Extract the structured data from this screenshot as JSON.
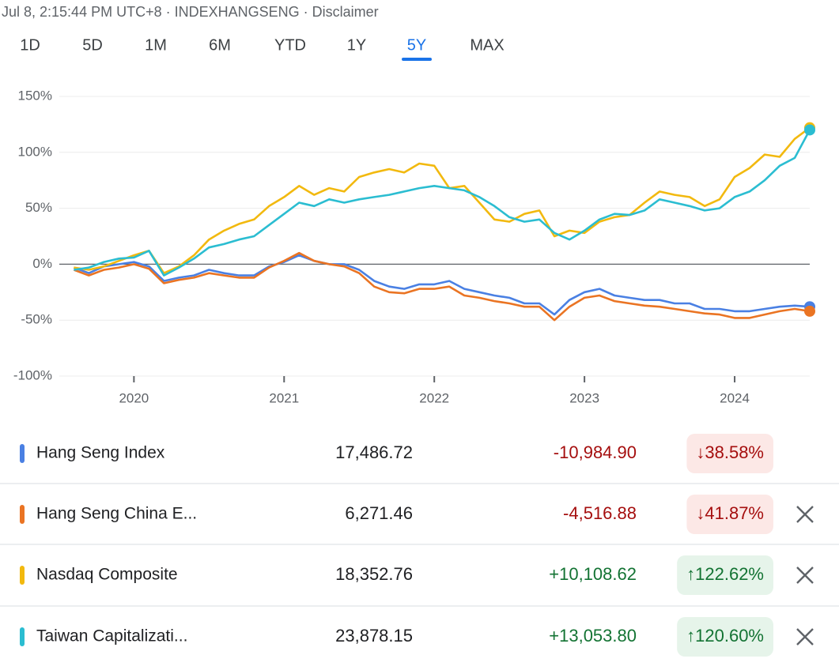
{
  "header": {
    "text": "Jul 8, 2:15:44 PM UTC+8 · INDEXHANGSENG · Disclaimer"
  },
  "tabs": {
    "items": [
      "1D",
      "5D",
      "1M",
      "6M",
      "YTD",
      "1Y",
      "5Y",
      "MAX"
    ],
    "selected": "5Y"
  },
  "chart_data": {
    "type": "line",
    "x": [
      2019.6,
      2019.7,
      2019.8,
      2019.9,
      2020.0,
      2020.1,
      2020.2,
      2020.3,
      2020.4,
      2020.5,
      2020.6,
      2020.7,
      2020.8,
      2020.9,
      2021.0,
      2021.1,
      2021.2,
      2021.3,
      2021.4,
      2021.5,
      2021.6,
      2021.7,
      2021.8,
      2021.9,
      2022.0,
      2022.1,
      2022.2,
      2022.3,
      2022.4,
      2022.5,
      2022.6,
      2022.7,
      2022.8,
      2022.9,
      2023.0,
      2023.1,
      2023.2,
      2023.3,
      2023.4,
      2023.5,
      2023.6,
      2023.7,
      2023.8,
      2023.9,
      2024.0,
      2024.1,
      2024.2,
      2024.3,
      2024.4,
      2024.5
    ],
    "series": [
      {
        "name": "Hang Seng Index",
        "color": "#4a80e3",
        "values": [
          -3,
          -8,
          -2,
          0,
          2,
          -2,
          -15,
          -12,
          -10,
          -5,
          -8,
          -10,
          -10,
          -2,
          2,
          8,
          3,
          0,
          0,
          -5,
          -15,
          -20,
          -22,
          -18,
          -18,
          -15,
          -22,
          -25,
          -28,
          -30,
          -35,
          -35,
          -45,
          -32,
          -25,
          -22,
          -28,
          -30,
          -32,
          -32,
          -35,
          -35,
          -40,
          -40,
          -42,
          -42,
          -40,
          -38,
          -37,
          -38
        ]
      },
      {
        "name": "Hang Seng China E...",
        "color": "#ea7423",
        "values": [
          -5,
          -10,
          -5,
          -3,
          0,
          -4,
          -17,
          -14,
          -12,
          -8,
          -10,
          -12,
          -12,
          -3,
          3,
          10,
          3,
          0,
          -2,
          -8,
          -20,
          -25,
          -26,
          -22,
          -22,
          -20,
          -28,
          -30,
          -33,
          -35,
          -38,
          -38,
          -50,
          -38,
          -30,
          -28,
          -33,
          -35,
          -37,
          -38,
          -40,
          -42,
          -44,
          -45,
          -48,
          -48,
          -45,
          -42,
          -40,
          -42
        ]
      },
      {
        "name": "Nasdaq Composite",
        "color": "#f2b90f",
        "values": [
          -3,
          -5,
          -2,
          3,
          8,
          12,
          -8,
          -2,
          8,
          22,
          30,
          36,
          40,
          52,
          60,
          70,
          62,
          68,
          65,
          78,
          82,
          85,
          82,
          90,
          88,
          68,
          70,
          55,
          40,
          38,
          45,
          48,
          25,
          30,
          28,
          38,
          42,
          44,
          55,
          65,
          62,
          60,
          52,
          58,
          78,
          86,
          98,
          96,
          112,
          122
        ]
      },
      {
        "name": "Taiwan Capitalizati...",
        "color": "#2bbdd1",
        "values": [
          -5,
          -3,
          2,
          5,
          6,
          12,
          -10,
          -3,
          5,
          15,
          18,
          22,
          25,
          35,
          45,
          55,
          52,
          58,
          55,
          58,
          60,
          62,
          65,
          68,
          70,
          68,
          66,
          60,
          52,
          42,
          38,
          40,
          28,
          22,
          30,
          40,
          45,
          44,
          48,
          58,
          55,
          52,
          48,
          50,
          60,
          65,
          75,
          88,
          95,
          120
        ]
      }
    ],
    "xlim": [
      2019.54,
      2024.5
    ],
    "xticks": [
      2020,
      2021,
      2022,
      2023,
      2024
    ],
    "ylim": [
      -100,
      150
    ],
    "yticks": [
      {
        "value": -100,
        "label": "-100%"
      },
      {
        "value": -50,
        "label": "-50%"
      },
      {
        "value": 0,
        "label": "0%"
      },
      {
        "value": 50,
        "label": "50%"
      },
      {
        "value": 100,
        "label": "100%"
      },
      {
        "value": 150,
        "label": "150%"
      }
    ],
    "grid": true,
    "baseline": 0
  },
  "table": {
    "rows": [
      {
        "name": "Hang Seng Index",
        "price": "17,486.72",
        "change": "-10,984.90",
        "percent": "↓38.58%",
        "removable": false
      },
      {
        "name": "Hang Seng China E...",
        "price": "6,271.46",
        "change": "-4,516.88",
        "percent": "↓41.87%",
        "removable": true
      },
      {
        "name": "Nasdaq Composite",
        "price": "18,352.76",
        "change": "+10,108.62",
        "percent": "↑122.62%",
        "removable": true
      },
      {
        "name": "Taiwan Capitalizati...",
        "price": "23,878.15",
        "change": "+13,053.80",
        "percent": "↑120.60%",
        "removable": true
      }
    ]
  }
}
